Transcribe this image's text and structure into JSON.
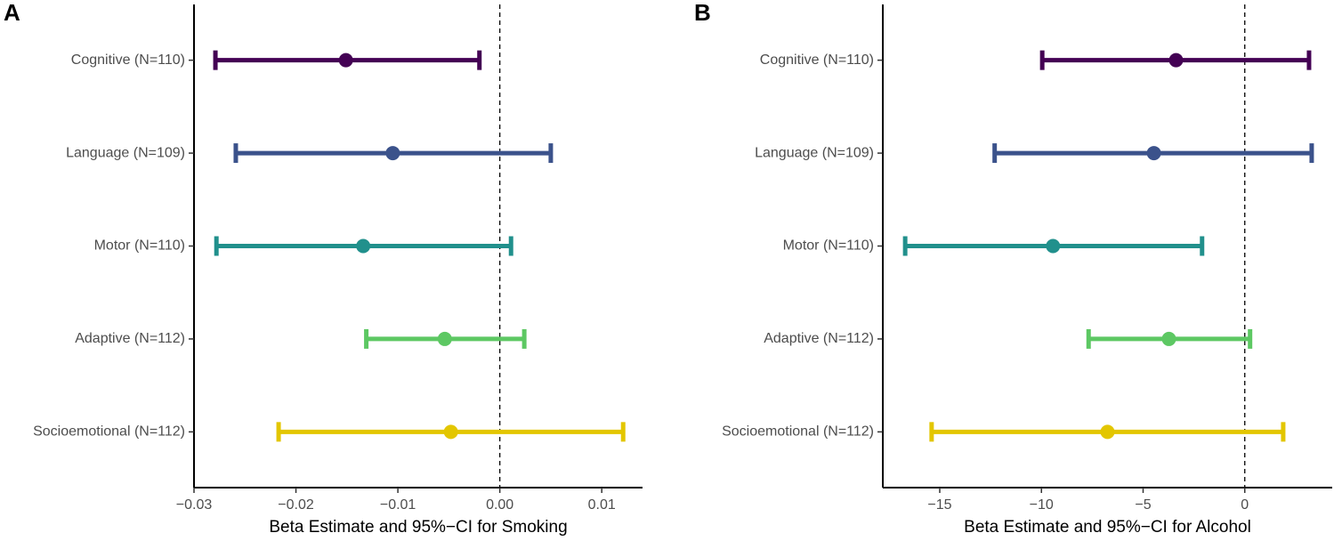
{
  "chart_data": [
    {
      "type": "forest",
      "panel": "A",
      "xlabel": "Beta Estimate and 95%−CI for Smoking",
      "categories": [
        "Cognitive (N=110)",
        "Language (N=109)",
        "Motor (N=110)",
        "Adaptive (N=112)",
        "Socioemotional (N=112)"
      ],
      "values": [
        -0.0151,
        -0.0105,
        -0.0134,
        -0.0054,
        -0.0048
      ],
      "lower": [
        -0.0279,
        -0.0259,
        -0.0278,
        -0.0131,
        -0.0217
      ],
      "upper": [
        -0.002,
        0.005,
        0.0011,
        0.0024,
        0.0121
      ],
      "colors": [
        "#440154",
        "#3b528b",
        "#21908c",
        "#5dc863",
        "#e3c600"
      ],
      "xlim": [
        -0.03,
        0.014
      ],
      "xticks": [
        {
          "value": -0.03,
          "label": "−0.03"
        },
        {
          "value": -0.02,
          "label": "−0.02"
        },
        {
          "value": -0.01,
          "label": "−0.01"
        },
        {
          "value": 0,
          "label": "0.00"
        },
        {
          "value": 0.01,
          "label": "0.01"
        }
      ],
      "refline": 0
    },
    {
      "type": "forest",
      "panel": "B",
      "xlabel": "Beta Estimate and 95%−CI for Alcohol",
      "categories": [
        "Cognitive (N=110)",
        "Language (N=109)",
        "Motor (N=110)",
        "Adaptive (N=112)",
        "Socioemotional (N=112)"
      ],
      "values": [
        -3.38,
        -4.47,
        -9.43,
        -3.73,
        -6.75
      ],
      "lower": [
        -9.96,
        -12.3,
        -16.7,
        -7.68,
        -15.4
      ],
      "upper": [
        3.16,
        3.29,
        -2.1,
        0.26,
        1.89
      ],
      "colors": [
        "#440154",
        "#3b528b",
        "#21908c",
        "#5dc863",
        "#e3c600"
      ],
      "xlim": [
        -17.8,
        4.3
      ],
      "xticks": [
        {
          "value": -15,
          "label": "−15"
        },
        {
          "value": -10,
          "label": "−10"
        },
        {
          "value": -5,
          "label": "−5"
        },
        0
      ],
      "refline": 0
    }
  ]
}
